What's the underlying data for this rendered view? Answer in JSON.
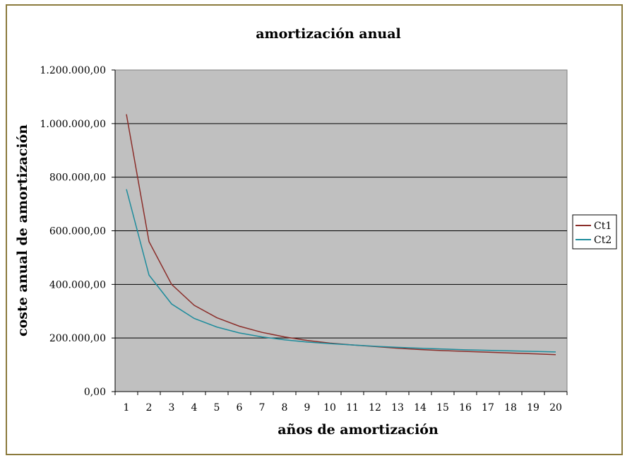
{
  "chart_data": {
    "type": "line",
    "title": "amortización anual",
    "xlabel": "años de amortización",
    "ylabel": "coste anual de amortización",
    "categories": [
      "1",
      "2",
      "3",
      "4",
      "5",
      "6",
      "7",
      "8",
      "9",
      "10",
      "11",
      "12",
      "13",
      "14",
      "15",
      "16",
      "17",
      "18",
      "19",
      "20"
    ],
    "ylim": [
      0,
      1200000
    ],
    "yticks": [
      0,
      200000,
      400000,
      600000,
      800000,
      1000000,
      1200000
    ],
    "ytick_labels": [
      "0,00",
      "200.000,00",
      "400.000,00",
      "600.000,00",
      "800.000,00",
      "1.000.000,00",
      "1.200.000,00"
    ],
    "grid": "horizontal",
    "legend_position": "right",
    "plot_background": "#c0c0c0",
    "series": [
      {
        "name": "Ct1",
        "color": "#8b2e2a",
        "values": [
          1035000,
          560000,
          400000,
          322000,
          276000,
          244000,
          221000,
          204000,
          191000,
          181000,
          174000,
          168000,
          162000,
          157000,
          153000,
          150000,
          147000,
          144000,
          141000,
          138000
        ]
      },
      {
        "name": "Ct2",
        "color": "#1e8c9c",
        "values": [
          755000,
          435000,
          327000,
          273000,
          241000,
          219000,
          204000,
          193000,
          185000,
          179000,
          174000,
          169000,
          165000,
          162000,
          159000,
          156000,
          154000,
          152000,
          150000,
          148000
        ]
      }
    ]
  }
}
